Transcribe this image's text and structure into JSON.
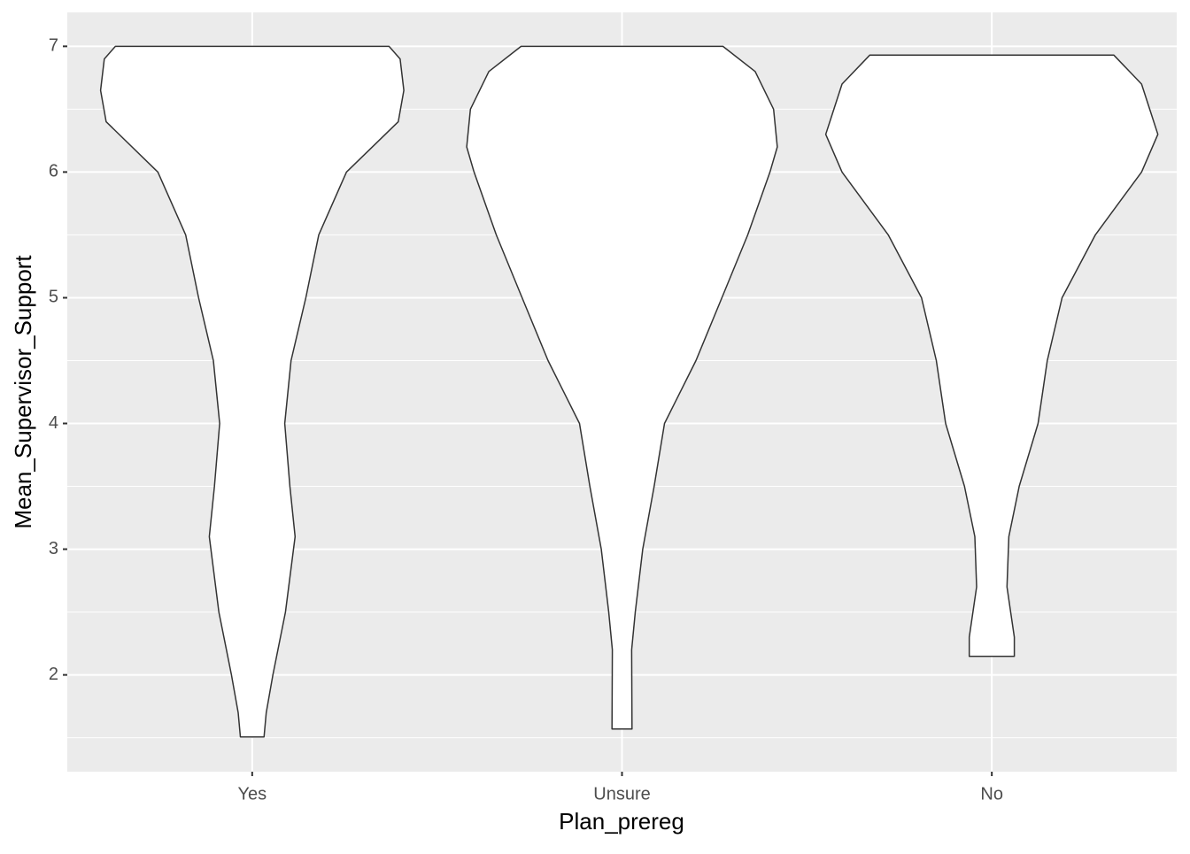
{
  "chart_data": {
    "type": "violin",
    "x_label": "Plan_prereg",
    "y_label": "Mean_Supervisor_Support",
    "categories": [
      "Yes",
      "Unsure",
      "No"
    ],
    "violins": [
      {
        "y": [
          7.0,
          6.9,
          6.65,
          6.4,
          6.0,
          5.5,
          5.0,
          4.5,
          4.0,
          3.5,
          3.1,
          2.5,
          2.0,
          1.7,
          1.507
        ],
        "half_width": [
          0.37,
          0.4,
          0.41,
          0.395,
          0.255,
          0.18,
          0.145,
          0.105,
          0.088,
          0.102,
          0.116,
          0.09,
          0.056,
          0.038,
          0.032
        ]
      },
      {
        "y": [
          7.0,
          6.8,
          6.5,
          6.2,
          6.0,
          5.5,
          5.0,
          4.5,
          4.0,
          3.5,
          3.0,
          2.5,
          2.2,
          1.57
        ],
        "half_width": [
          0.273,
          0.36,
          0.41,
          0.42,
          0.4,
          0.34,
          0.27,
          0.2,
          0.115,
          0.087,
          0.056,
          0.036,
          0.026,
          0.027
        ]
      },
      {
        "y": [
          6.93,
          6.7,
          6.3,
          6.0,
          5.5,
          5.0,
          4.5,
          4.0,
          3.5,
          3.1,
          2.7,
          2.3,
          2.148
        ],
        "half_width": [
          0.33,
          0.405,
          0.449,
          0.405,
          0.28,
          0.19,
          0.15,
          0.125,
          0.074,
          0.046,
          0.041,
          0.061,
          0.061
        ]
      }
    ],
    "fill": "#ffffff",
    "outline": "#333333",
    "ylim": [
      1.23,
      7.27
    ],
    "yticks": [
      2,
      3,
      4,
      5,
      6,
      7
    ],
    "yminor_ticks": [
      1.5,
      2.5,
      3.5,
      4.5,
      5.5,
      6.5
    ],
    "grid": true
  }
}
